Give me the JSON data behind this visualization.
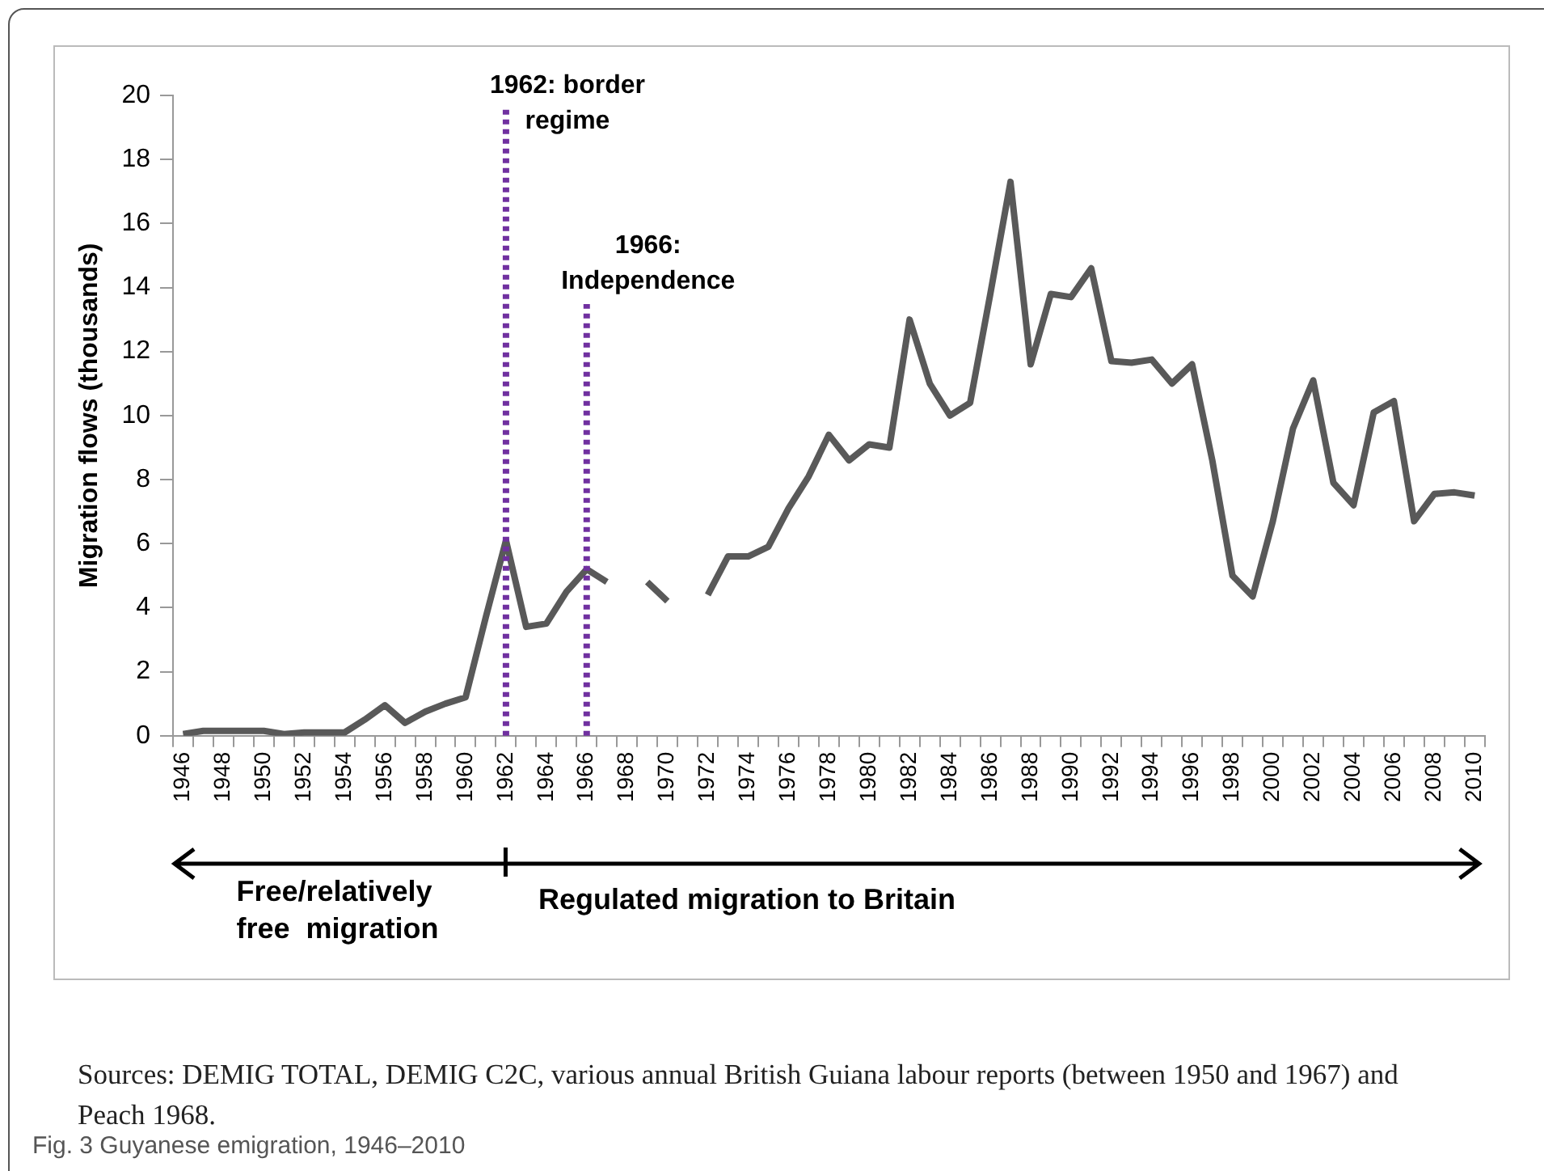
{
  "chart_data": {
    "type": "line",
    "title": "Fig. 3 Guyanese emigration, 1946–2010",
    "ylabel": "Migration flows (thousands)",
    "categories": [
      "1946",
      null,
      "1948",
      null,
      "1950",
      null,
      "1952",
      null,
      "1954",
      null,
      "1956",
      null,
      "1958",
      null,
      "1960",
      null,
      "1962",
      null,
      "1964",
      null,
      "1966",
      null,
      "1968",
      null,
      "1970",
      null,
      "1972",
      null,
      "1974",
      null,
      "1976",
      null,
      "1978",
      null,
      "1980",
      null,
      "1982",
      null,
      "1984",
      null,
      "1986",
      null,
      "1988",
      null,
      "1990",
      null,
      "1992",
      null,
      "1994",
      null,
      "1996",
      null,
      "1998",
      null,
      "2000",
      null,
      "2002",
      null,
      "2004",
      null,
      "2006",
      null,
      "2008",
      null,
      "2010"
    ],
    "series": [
      {
        "color": "#595959",
        "values": [
          0.05,
          0.15,
          0.15,
          0.15,
          0.15,
          0.05,
          0.1,
          0.1,
          0.1,
          0.5,
          0.95,
          0.4,
          0.75,
          1.0,
          1.2,
          3.7,
          6.1,
          3.4,
          3.5,
          4.5,
          5.2,
          4.8,
          null,
          4.8,
          4.2,
          null,
          4.4,
          5.6,
          5.6,
          5.9,
          7.1,
          8.1,
          9.4,
          8.6,
          9.1,
          9.0,
          13.0,
          11.0,
          10.0,
          10.4,
          13.8,
          17.3,
          11.6,
          13.8,
          13.7,
          14.6,
          11.7,
          11.65,
          11.75,
          11.0,
          11.6,
          8.6,
          5.0,
          4.35,
          6.7,
          9.6,
          11.1,
          7.9,
          7.2,
          10.1,
          10.45,
          6.7,
          7.55,
          7.6,
          7.5
        ]
      }
    ],
    "ylim": [
      0,
      20
    ],
    "yticks": [
      0,
      2,
      4,
      6,
      8,
      10,
      12,
      14,
      16,
      18,
      20
    ],
    "grid": false,
    "legend": false,
    "marker": "none",
    "ref_lines": [
      {
        "axis": "x",
        "value": "1962",
        "label": "1962: border\nregime",
        "color": "#7030a0",
        "line_style": "dotted"
      },
      {
        "axis": "x",
        "value": "1966",
        "label": "1966:\nIndependence",
        "color": "#7030a0",
        "line_style": "dotted"
      }
    ],
    "annotations": [
      "Free/relatively\nfree  migration",
      "Regulated migration to Britain",
      "Sources: DEMIG TOTAL, DEMIG C2C, various annual British Guiana labour reports (between 1950 and 1967) and Peach 1968."
    ]
  }
}
